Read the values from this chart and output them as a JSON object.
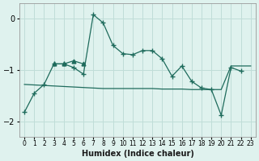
{
  "xlabel": "Humidex (Indice chaleur)",
  "bg_color": "#dff2ee",
  "grid_color": "#c0ddd8",
  "line_color": "#1e6b5c",
  "x_values": [
    0,
    1,
    2,
    3,
    4,
    5,
    6,
    7,
    8,
    9,
    10,
    11,
    12,
    13,
    14,
    15,
    16,
    17,
    18,
    19,
    20,
    21,
    22,
    23
  ],
  "main_line_x": [
    0,
    1,
    2,
    3,
    4,
    5,
    6,
    7,
    8,
    9,
    10,
    11,
    12,
    13,
    14,
    15,
    16,
    17,
    18,
    19,
    20,
    21,
    22
  ],
  "main_line_y": [
    -1.82,
    -1.45,
    -1.28,
    -0.88,
    -0.88,
    -0.95,
    -1.08,
    0.08,
    -0.08,
    -0.52,
    -0.68,
    -0.7,
    -0.62,
    -0.62,
    -0.78,
    -1.12,
    -0.92,
    -1.22,
    -1.35,
    -1.38,
    -1.88,
    -0.95,
    -1.02
  ],
  "sec_line_x": [
    3,
    4,
    5,
    6
  ],
  "sec_line_y": [
    -0.88,
    -0.88,
    -0.82,
    -0.88
  ],
  "trend_x": [
    0,
    1,
    2,
    3,
    4,
    5,
    6,
    7,
    8,
    9,
    10,
    11,
    12,
    13,
    14,
    15,
    16,
    17,
    18,
    19,
    20,
    21,
    22,
    23
  ],
  "trend_y": [
    -1.28,
    -1.29,
    -1.3,
    -1.31,
    -1.32,
    -1.33,
    -1.34,
    -1.35,
    -1.36,
    -1.36,
    -1.36,
    -1.36,
    -1.36,
    -1.36,
    -1.37,
    -1.37,
    -1.37,
    -1.38,
    -1.38,
    -1.38,
    -1.38,
    -0.92,
    -0.92,
    -0.92
  ],
  "ylim": [
    -2.3,
    0.3
  ],
  "yticks": [
    -2,
    -1,
    0
  ],
  "figsize": [
    3.2,
    2.0
  ],
  "dpi": 100
}
